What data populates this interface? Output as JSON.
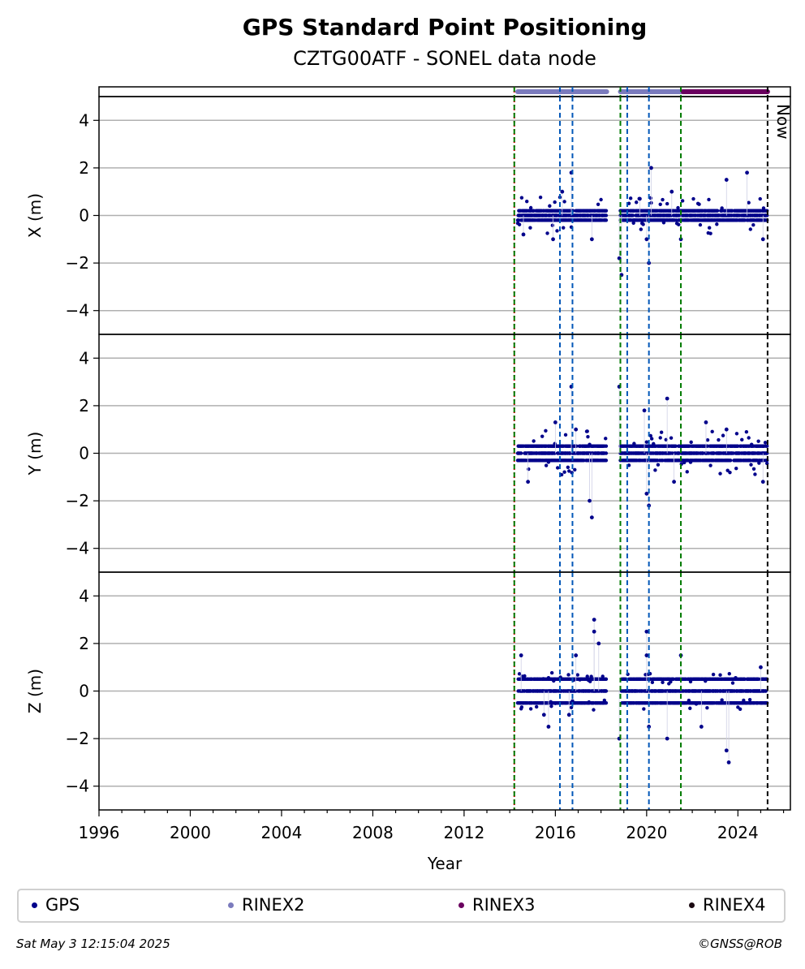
{
  "chart_data": {
    "type": "scatter",
    "title": "GPS Standard Point Positioning",
    "subtitle": "CZTG00ATF - SONEL data node",
    "xlabel": "Year",
    "xlim": [
      1996.0,
      2026.3
    ],
    "x_ticks": [
      "1996",
      "2000",
      "2004",
      "2008",
      "2012",
      "2016",
      "2020",
      "2024"
    ],
    "panels": [
      {
        "ylabel": "X (m)",
        "ylim": [
          -5,
          5
        ],
        "y_ticks": [
          "4",
          "2",
          "0",
          "−2",
          "−4"
        ],
        "outliers": [
          [
            2014.6,
            -0.8
          ],
          [
            2015.9,
            -1.0
          ],
          [
            2016.3,
            1.0
          ],
          [
            2016.7,
            1.8
          ],
          [
            2017.6,
            -1.0
          ],
          [
            2018.8,
            -1.8
          ],
          [
            2018.9,
            -2.5
          ],
          [
            2019.7,
            0.7
          ],
          [
            2020.0,
            -1.0
          ],
          [
            2020.1,
            -2.0
          ],
          [
            2020.2,
            2.0
          ],
          [
            2021.1,
            1.0
          ],
          [
            2021.5,
            -1.0
          ],
          [
            2023.5,
            1.5
          ],
          [
            2024.4,
            1.8
          ],
          [
            2025.1,
            -1.0
          ]
        ],
        "base_values": [
          -0.2,
          0,
          0.2
        ],
        "spread": 0.5
      },
      {
        "ylabel": "Y (m)",
        "ylim": [
          -5,
          5
        ],
        "y_ticks": [
          "4",
          "2",
          "0",
          "−2",
          "−4"
        ],
        "outliers": [
          [
            2014.8,
            -1.2
          ],
          [
            2016.0,
            1.3
          ],
          [
            2016.7,
            2.8
          ],
          [
            2016.9,
            1.0
          ],
          [
            2017.5,
            -2.0
          ],
          [
            2017.6,
            -2.7
          ],
          [
            2018.8,
            2.8
          ],
          [
            2019.9,
            1.8
          ],
          [
            2020.0,
            -1.7
          ],
          [
            2020.1,
            -2.2
          ],
          [
            2020.9,
            2.3
          ],
          [
            2021.2,
            -1.2
          ],
          [
            2022.6,
            1.3
          ],
          [
            2023.5,
            1.0
          ],
          [
            2025.1,
            -1.2
          ]
        ],
        "base_values": [
          -0.3,
          0,
          0.3
        ],
        "spread": 0.6
      },
      {
        "ylabel": "Z (m)",
        "ylim": [
          -5,
          5
        ],
        "y_ticks": [
          "4",
          "2",
          "0",
          "−2",
          "−4"
        ],
        "outliers": [
          [
            2014.5,
            1.5
          ],
          [
            2015.5,
            -1.0
          ],
          [
            2015.7,
            -1.5
          ],
          [
            2016.6,
            -1.0
          ],
          [
            2016.9,
            1.5
          ],
          [
            2017.7,
            3.0
          ],
          [
            2017.7,
            2.5
          ],
          [
            2017.9,
            2.0
          ],
          [
            2018.8,
            -2.0
          ],
          [
            2020.0,
            2.5
          ],
          [
            2020.0,
            1.5
          ],
          [
            2020.1,
            -1.5
          ],
          [
            2020.9,
            -2.0
          ],
          [
            2021.5,
            1.5
          ],
          [
            2022.4,
            -1.5
          ],
          [
            2023.5,
            -2.5
          ],
          [
            2023.6,
            -3.0
          ],
          [
            2025.0,
            1.0
          ]
        ],
        "base_values": [
          0,
          0.5,
          -0.5
        ],
        "spread": 0.5
      }
    ],
    "data_ranges": [
      [
        2014.35,
        2018.25
      ],
      [
        2018.85,
        2025.3
      ]
    ],
    "rinex_bars": [
      {
        "series": "RINEX2",
        "from": 2014.35,
        "to": 2018.25,
        "color": "#7b7bbd"
      },
      {
        "series": "RINEX2",
        "from": 2018.85,
        "to": 2021.6,
        "color": "#7b7bbd"
      },
      {
        "series": "RINEX3",
        "from": 2021.6,
        "to": 2025.3,
        "color": "#6a005f"
      }
    ],
    "vlines": [
      {
        "x": 2014.2,
        "color": "#cc0000",
        "style": "dotted"
      },
      {
        "x": 2014.2,
        "color": "#007a00",
        "style": "dashed"
      },
      {
        "x": 2016.2,
        "color": "#0057b8",
        "style": "dashed"
      },
      {
        "x": 2016.75,
        "color": "#0057b8",
        "style": "dashed"
      },
      {
        "x": 2018.85,
        "color": "#007a00",
        "style": "dashed"
      },
      {
        "x": 2019.15,
        "color": "#0057b8",
        "style": "dashed"
      },
      {
        "x": 2020.1,
        "color": "#0057b8",
        "style": "dashed"
      },
      {
        "x": 2021.5,
        "color": "#007a00",
        "style": "dashed"
      },
      {
        "x": 2025.3,
        "color": "#000000",
        "style": "dashed"
      }
    ],
    "now_label": "Now",
    "legend": [
      {
        "name": "GPS",
        "color": "#00008b"
      },
      {
        "name": "RINEX2",
        "color": "#7b7bbd"
      },
      {
        "name": "RINEX3",
        "color": "#6a005f"
      },
      {
        "name": "RINEX4",
        "color": "#1a0a12"
      }
    ],
    "colors": {
      "gps": "#00008b",
      "grid": "#b0b0b0"
    }
  },
  "footer": {
    "timestamp": "Sat May  3 12:15:04 2025",
    "credit": "©GNSS@ROB"
  }
}
